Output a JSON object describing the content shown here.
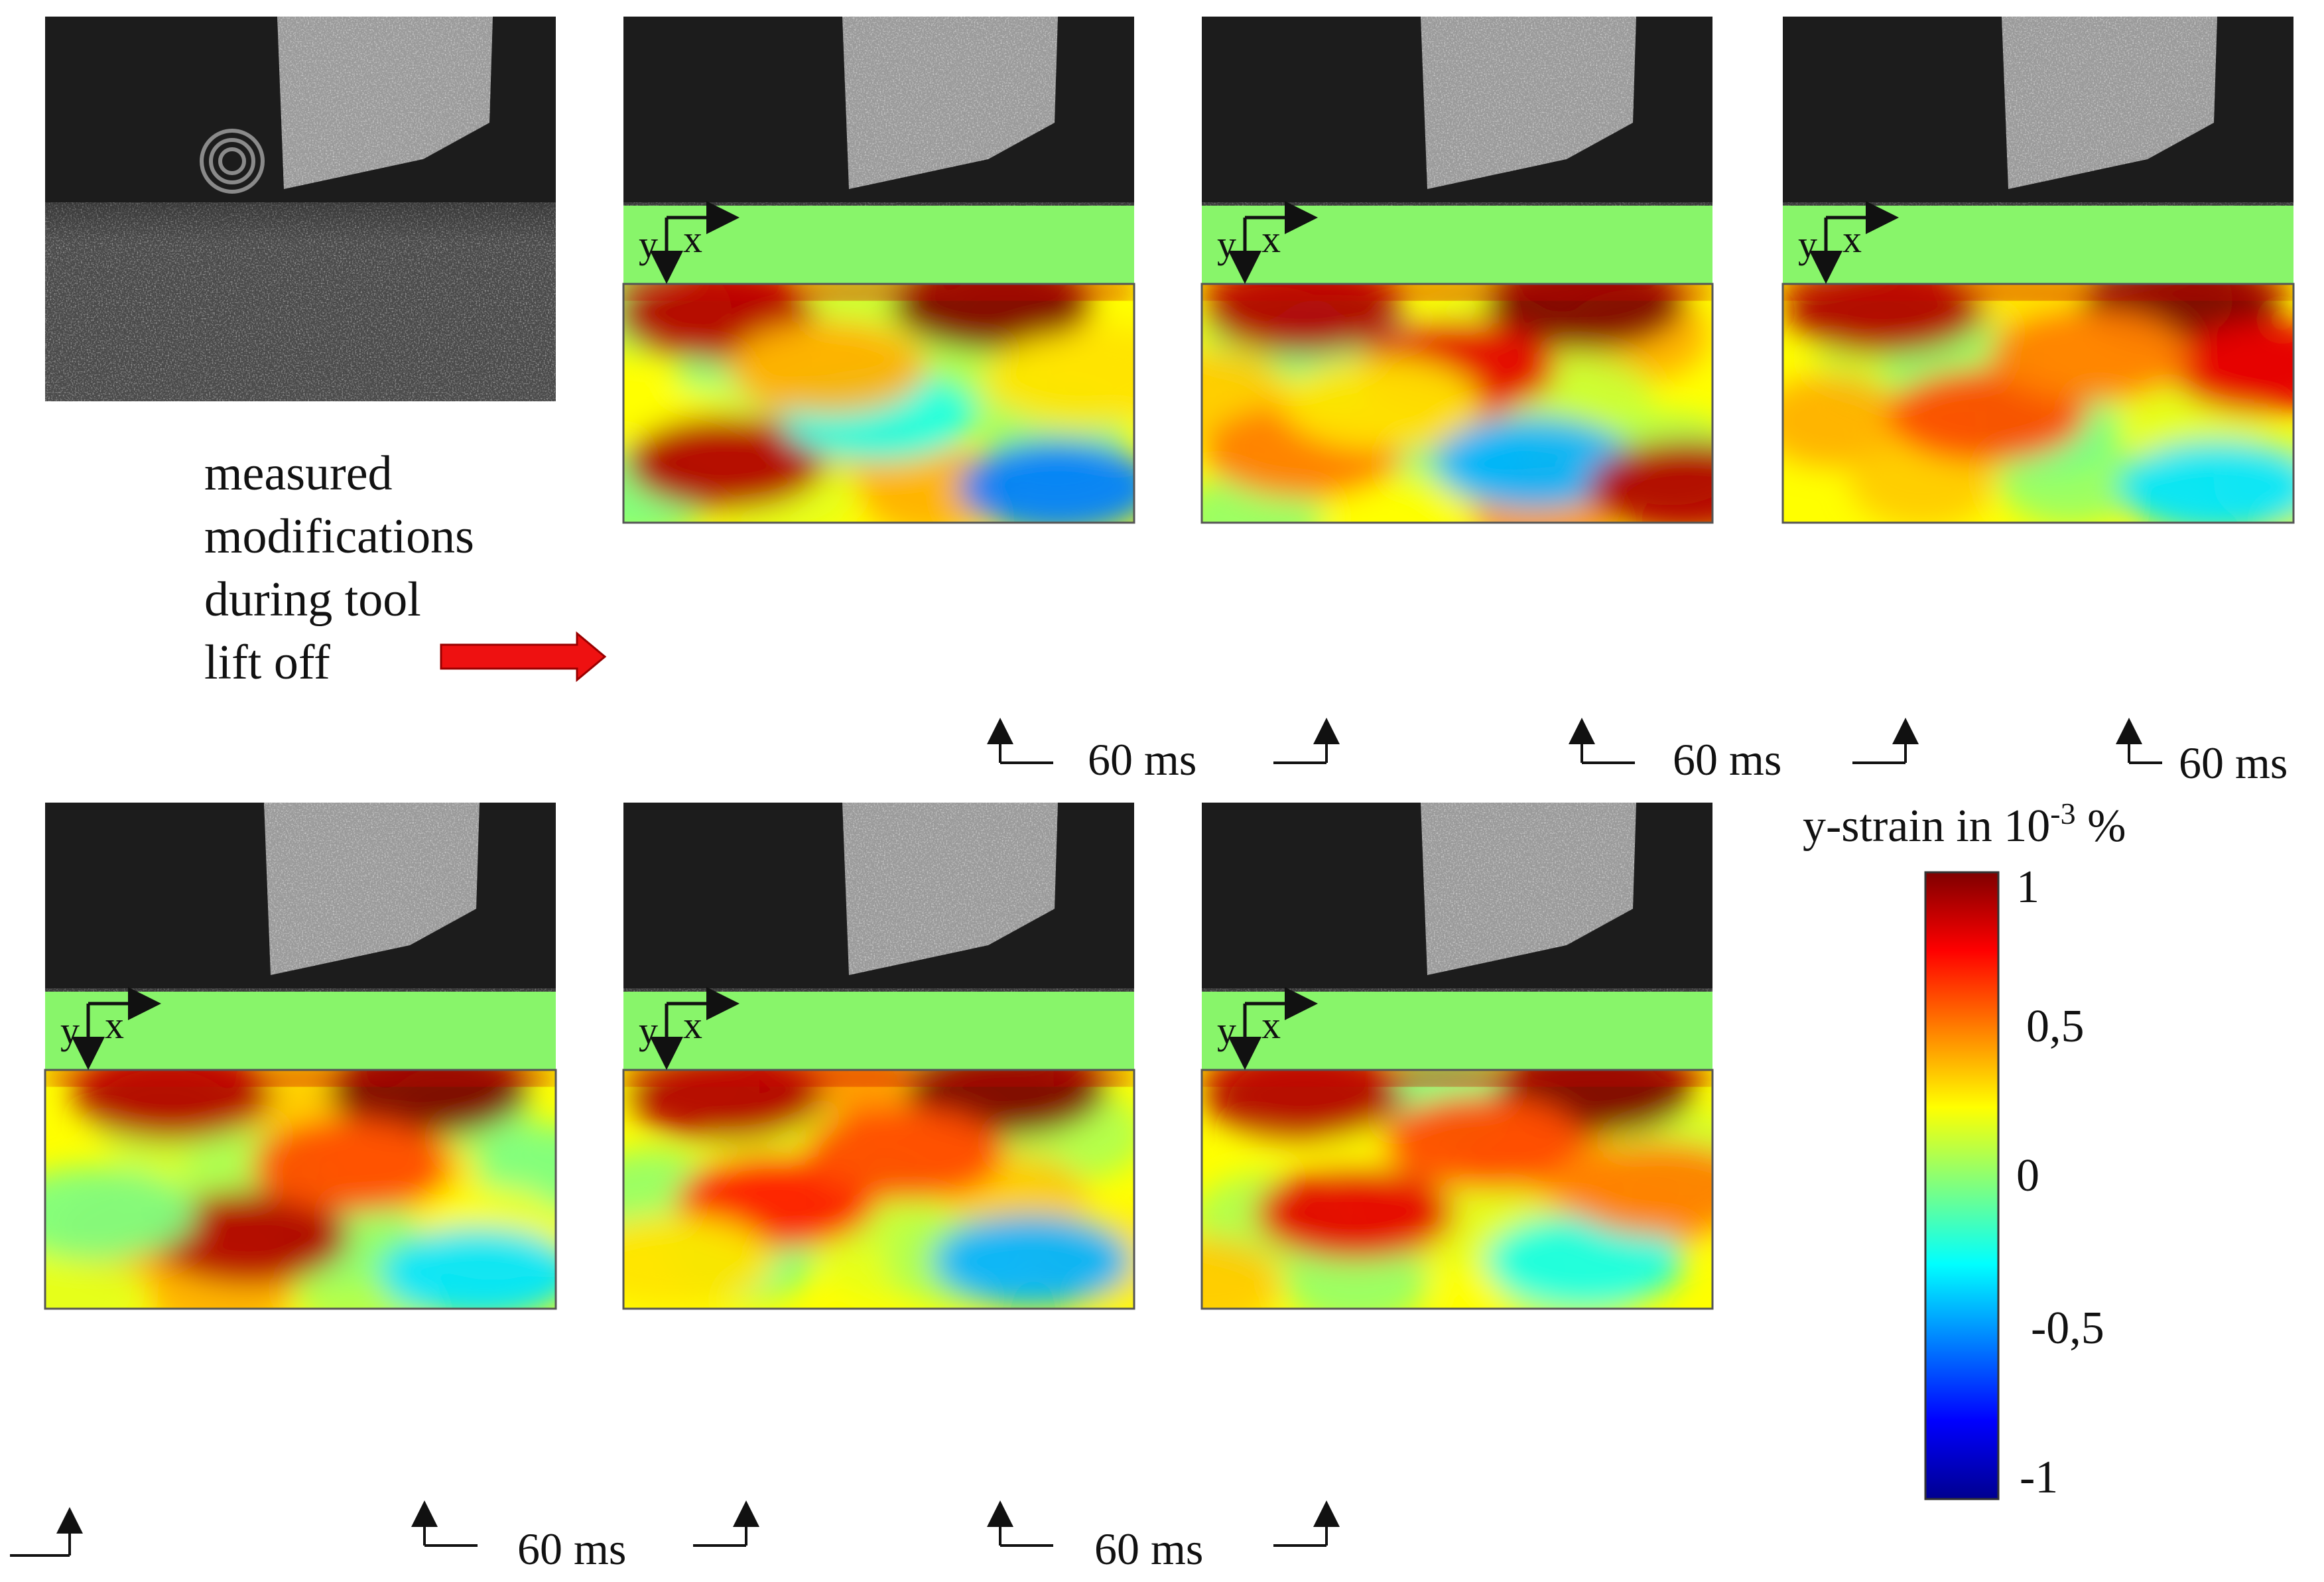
{
  "annotation": {
    "lines": [
      "measured",
      "modifications",
      "during tool",
      "lift off"
    ]
  },
  "axes_labels": {
    "y": "y",
    "x": "x"
  },
  "interval_label": "60 ms",
  "colorbar": {
    "title_prefix": "y-strain in 10",
    "title_exponent": "-3",
    "title_suffix": " %",
    "ticks": [
      "1",
      "0,5",
      "0",
      "-0,5",
      "-1"
    ],
    "colormap": "jet",
    "range": [
      -1,
      1
    ]
  },
  "colors": {
    "camera_dark": "#1c1c1c",
    "speckle_bg": "#4a4a4a",
    "strain_baseline": "#88f56a",
    "arrow": "#ee1111"
  }
}
